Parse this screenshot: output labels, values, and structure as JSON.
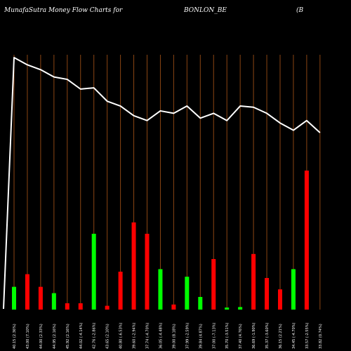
{
  "header": {
    "title": "MunafaSutra  Money Flow  Charts for",
    "symbol": "BONLON_BE",
    "extra": "(B"
  },
  "chart_data": {
    "type": "bar",
    "grid": "vertical",
    "colors": {
      "up": "#00ff00",
      "down": "#ff0000",
      "line": "#ffffff",
      "grid": "#8b4513",
      "label": "#ffffff"
    },
    "ylim": [
      0,
      100
    ],
    "categories": [
      "40.15 (2.36%)",
      "43.00 (7.10%)",
      "44.00 (2.33%)",
      "44.95 (2.16%)",
      "45.92 (2.16%)",
      "44.02 (-4.14%)",
      "42.76 (-2.86%)",
      "43.65 (2.10%)",
      "40.80 (-6.53%)",
      "39.60 (-2.94%)",
      "37.74 (-4.70%)",
      "36.05 (-4.48%)",
      "39.00 (8.18%)",
      "37.99 (-2.59%)",
      "39.84 (4.87%)",
      "37.00 (-7.13%)",
      "35.70 (-3.51%)",
      "37.40 (4.76%)",
      "36.69 (-1.90%)",
      "35.37 (-3.60%)",
      "36.15 (2.21%)",
      "34.45 (-4.70%)",
      "33.57 (-2.55%)",
      "33.82 (0.74%)"
    ],
    "values": [
      9,
      14,
      9,
      6.5,
      2.5,
      2.5,
      30,
      1.5,
      15,
      34.5,
      30,
      16,
      2,
      13,
      5,
      20,
      0.8,
      1,
      22,
      12.5,
      8,
      16,
      55,
      0
    ],
    "bar_colors": [
      "up",
      "down",
      "down",
      "up",
      "down",
      "down",
      "up",
      "down",
      "down",
      "down",
      "down",
      "up",
      "down",
      "up",
      "up",
      "down",
      "up",
      "up",
      "down",
      "down",
      "down",
      "up",
      "down",
      "none"
    ],
    "line_values": [
      100,
      97,
      95,
      92,
      91,
      87,
      87.5,
      82,
      80,
      76,
      74,
      78,
      77,
      80,
      75,
      77,
      74,
      80,
      79.5,
      77,
      73,
      70,
      74,
      69
    ]
  }
}
